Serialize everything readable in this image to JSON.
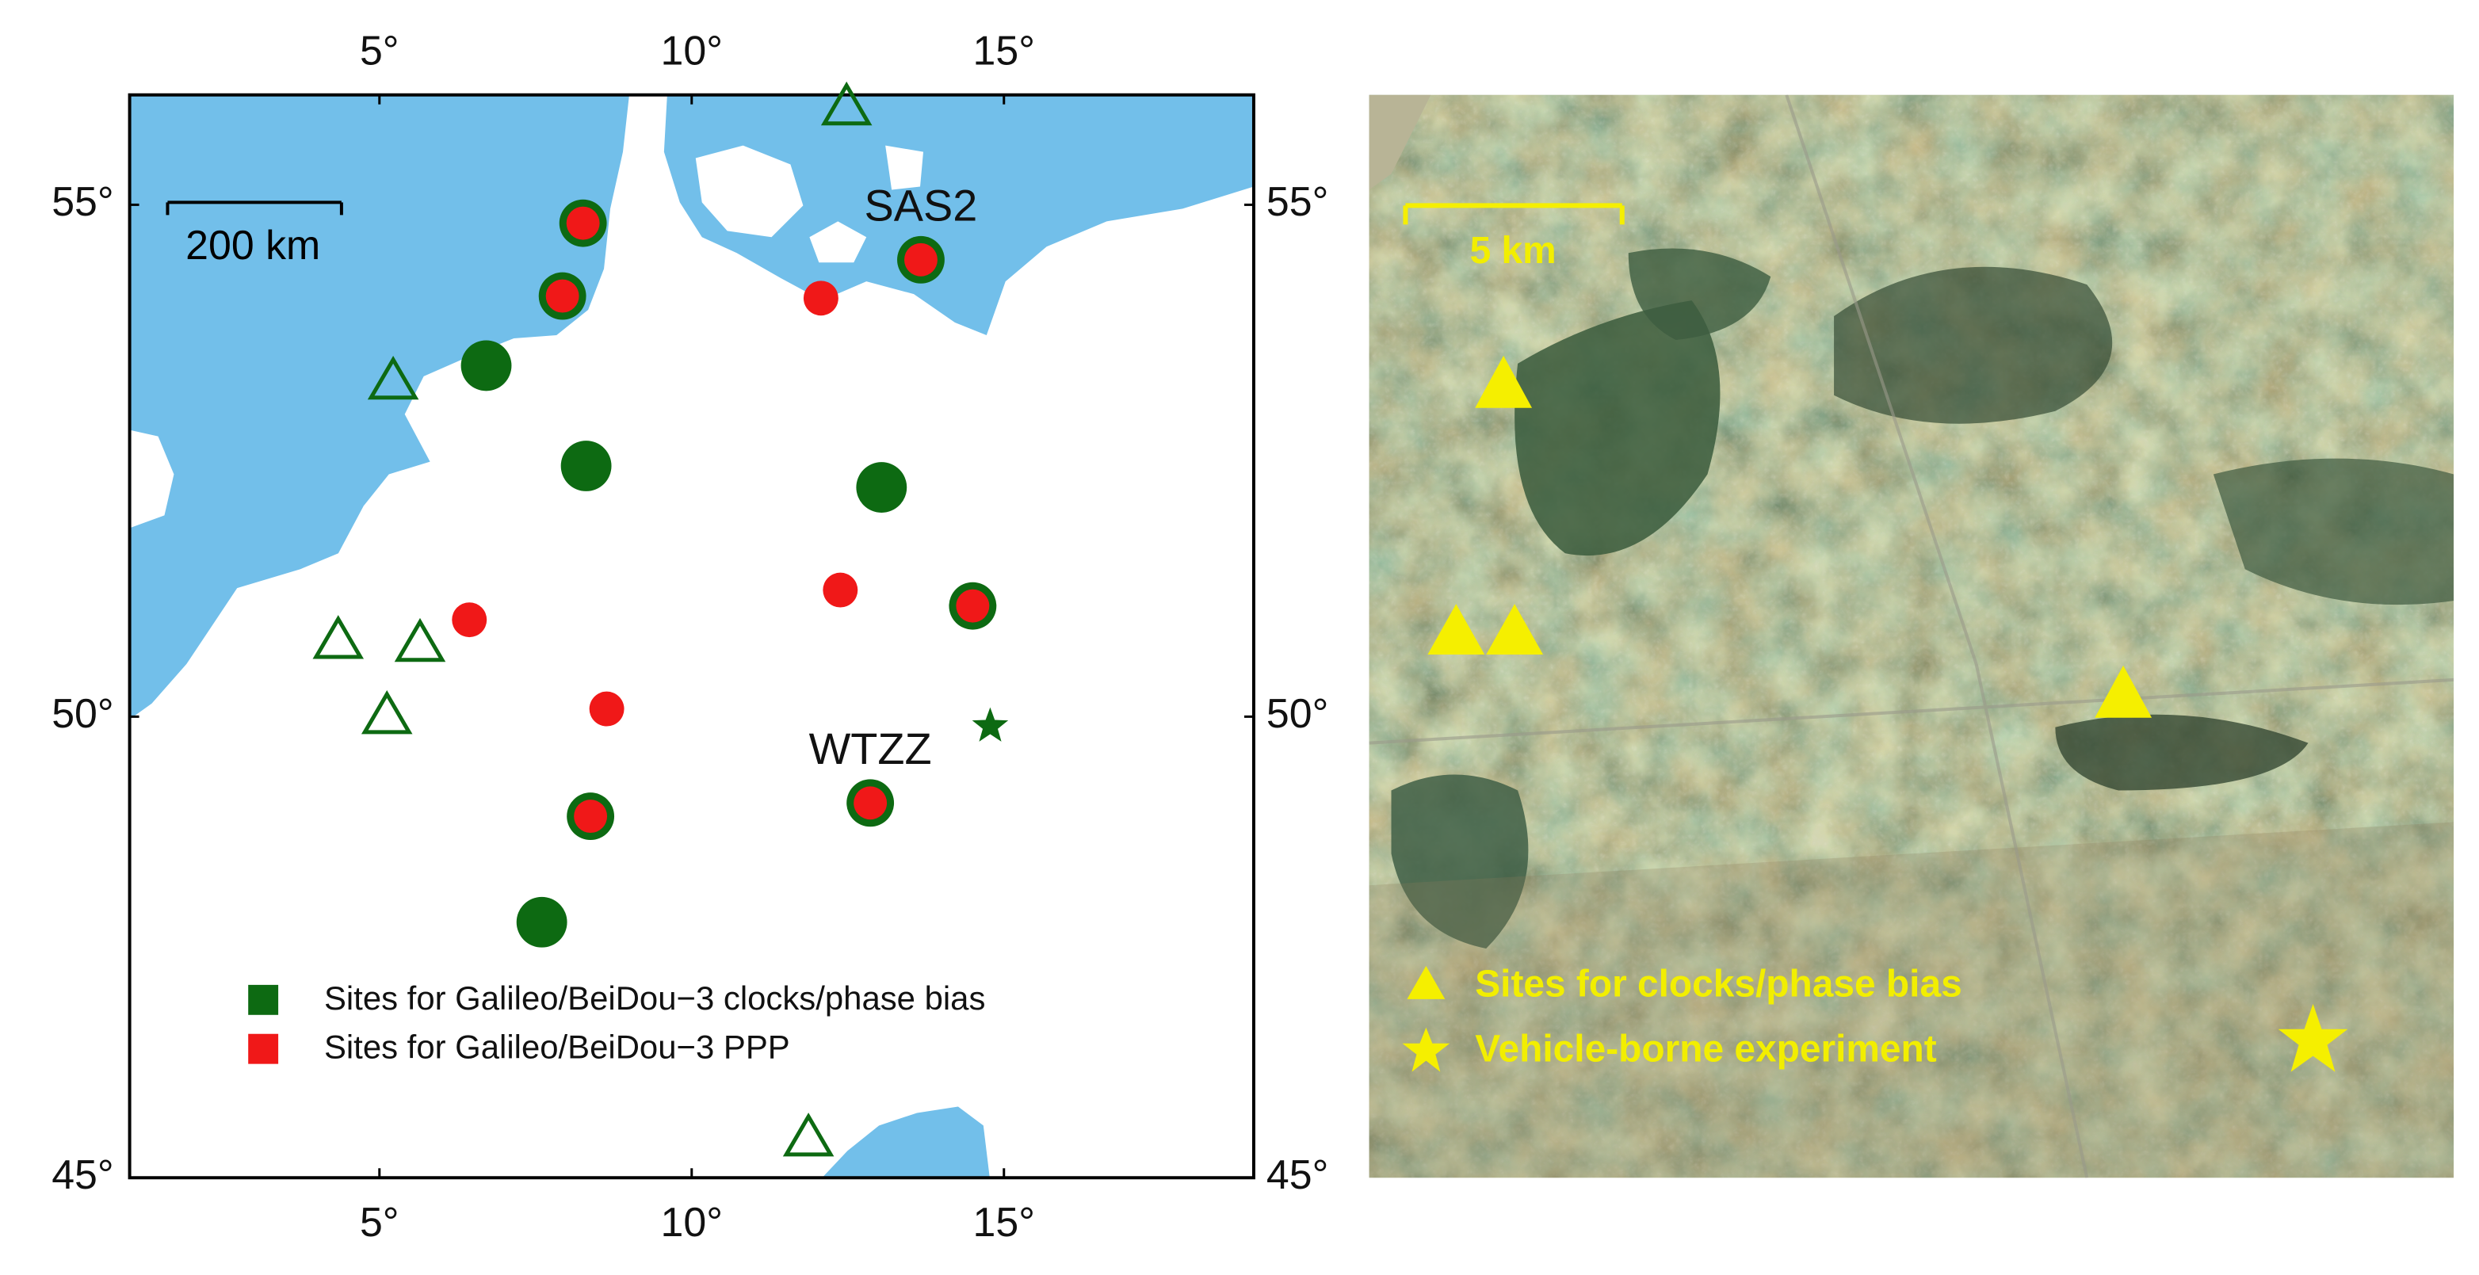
{
  "left_map": {
    "xlim": [
      1,
      19
    ],
    "ylim": [
      45,
      56
    ],
    "xticks": [
      {
        "value": 5,
        "label": "5°"
      },
      {
        "value": 10,
        "label": "10°"
      },
      {
        "value": 15,
        "label": "15°"
      }
    ],
    "yticks": [
      {
        "value": 45,
        "label": "45°"
      },
      {
        "value": 50,
        "label": "50°"
      },
      {
        "value": 55,
        "label": "55°"
      }
    ],
    "scale_bar": "200 km",
    "colors": {
      "clock": "#0d6a12",
      "ppp": "#f01818",
      "sea": "#72bfea"
    },
    "sites_clock": [
      {
        "lon": 6.71,
        "lat": 53.49
      },
      {
        "lon": 8.31,
        "lat": 52.52
      },
      {
        "lon": 13.04,
        "lat": 52.31
      },
      {
        "lon": 7.6,
        "lat": 47.83
      }
    ],
    "sites_both": [
      {
        "lon": 8.26,
        "lat": 54.83
      },
      {
        "lon": 7.93,
        "lat": 54.15
      },
      {
        "lon": 13.67,
        "lat": 54.49,
        "label": "SAS2"
      },
      {
        "lon": 14.5,
        "lat": 51.13
      },
      {
        "lon": 8.38,
        "lat": 48.96
      },
      {
        "lon": 12.86,
        "lat": 49.1,
        "label": "WTZZ"
      }
    ],
    "sites_ppp": [
      {
        "lon": 12.07,
        "lat": 54.13
      },
      {
        "lon": 6.44,
        "lat": 50.99
      },
      {
        "lon": 12.38,
        "lat": 51.29
      },
      {
        "lon": 8.64,
        "lat": 50.08
      }
    ],
    "sites_triangle": [
      {
        "lon": 12.48,
        "lat": 55.9
      },
      {
        "lon": 5.22,
        "lat": 53.35
      },
      {
        "lon": 4.34,
        "lat": 50.79
      },
      {
        "lon": 5.65,
        "lat": 50.76
      },
      {
        "lon": 5.12,
        "lat": 50.02
      },
      {
        "lon": 11.87,
        "lat": 45.46
      }
    ],
    "sites_star": [
      {
        "lon": 14.78,
        "lat": 49.9
      }
    ],
    "legend": [
      {
        "label": "Sites for Galileo/BeiDou−3 clocks/phase bias",
        "color": "#0d6a12"
      },
      {
        "label": "Sites for Galileo/BeiDou−3 PPP",
        "color": "#f01818"
      }
    ]
  },
  "right_panel": {
    "scale_bar": "5 km",
    "legend": [
      {
        "label": "Sites for clocks/phase bias"
      },
      {
        "label": "Vehicle-borne experiment"
      }
    ]
  }
}
